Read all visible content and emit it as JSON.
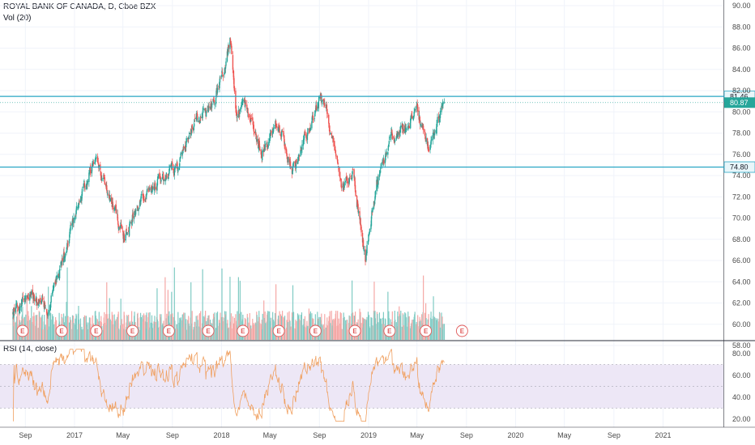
{
  "header": {
    "title": "ROYAL BANK OF CANADA, D, Cboe BZX",
    "volume_label": "Vol (20)",
    "rsi_label": "RSI (14, close)"
  },
  "colors": {
    "up": "#26a69a",
    "down": "#ef5350",
    "up_vol": "#80cbc4",
    "down_vol": "#f5a8a6",
    "level_line": "#29a6c4",
    "rsi_line": "#f0a060",
    "rsi_band": "#ede7f6",
    "tag_teal": "#25a69a",
    "earnings": "#e05a5a"
  },
  "chart_data": [
    {
      "type": "candlestick",
      "title": "ROYAL BANK OF CANADA, D, Cboe BZX",
      "ylim": [
        57,
        90.5
      ],
      "y_ticks": [
        "90.00",
        "88.00",
        "86.00",
        "84.00",
        "82.00",
        "80.00",
        "78.00",
        "76.00",
        "74.00",
        "72.00",
        "70.00",
        "68.00",
        "66.00",
        "64.00",
        "62.00",
        "60.00",
        "58.00"
      ],
      "x_ticks": [
        "Sep",
        "2017",
        "May",
        "Sep",
        "2018",
        "May",
        "Sep",
        "2019",
        "May",
        "Sep",
        "2020",
        "May",
        "Sep",
        "2021"
      ],
      "price_path": [
        [
          "2016-08-01",
          61.0
        ],
        [
          "2016-09-15",
          62.8
        ],
        [
          "2016-10-25",
          61.3
        ],
        [
          "2016-12-05",
          66.5
        ],
        [
          "2017-01-10",
          71.5
        ],
        [
          "2017-02-20",
          75.5
        ],
        [
          "2017-03-25",
          72.5
        ],
        [
          "2017-05-05",
          68.0
        ],
        [
          "2017-06-15",
          72.0
        ],
        [
          "2017-08-01",
          73.5
        ],
        [
          "2017-09-15",
          75.0
        ],
        [
          "2017-11-01",
          79.5
        ],
        [
          "2017-12-05",
          80.0
        ],
        [
          "2018-01-05",
          84.0
        ],
        [
          "2018-01-22",
          86.7
        ],
        [
          "2018-02-08",
          79.5
        ],
        [
          "2018-03-01",
          80.5
        ],
        [
          "2018-04-10",
          76.0
        ],
        [
          "2018-05-20",
          79.0
        ],
        [
          "2018-06-25",
          74.5
        ],
        [
          "2018-08-01",
          78.0
        ],
        [
          "2018-09-01",
          81.2
        ],
        [
          "2018-09-20",
          80.0
        ],
        [
          "2018-10-25",
          73.0
        ],
        [
          "2018-11-25",
          74.0
        ],
        [
          "2018-12-24",
          66.2
        ],
        [
          "2019-01-20",
          73.0
        ],
        [
          "2019-02-25",
          77.5
        ],
        [
          "2019-04-05",
          78.5
        ],
        [
          "2019-05-01",
          80.5
        ],
        [
          "2019-05-30",
          76.5
        ],
        [
          "2019-06-25",
          79.5
        ],
        [
          "2019-07-08",
          80.9
        ]
      ],
      "levels": [
        {
          "value": 81.46,
          "label": "81.46"
        },
        {
          "value": 74.8,
          "label": "74.80"
        }
      ],
      "last_price": {
        "value": 80.87,
        "label": "80.87"
      },
      "earnings_marks": [
        "E",
        "E",
        "E",
        "E",
        "E",
        "E",
        "E",
        "E",
        "E",
        "E",
        "E",
        "E",
        "E"
      ],
      "earnings_dates": [
        "2016-08-25",
        "2016-11-30",
        "2017-02-24",
        "2017-05-25",
        "2017-08-23",
        "2017-11-29",
        "2018-02-23",
        "2018-05-23",
        "2018-08-22",
        "2018-11-28",
        "2019-02-22",
        "2019-05-23",
        "2019-08-21"
      ]
    },
    {
      "type": "line",
      "title": "RSI (14, close)",
      "ylim": [
        15,
        87
      ],
      "y_ticks": [
        "80.00",
        "60.00",
        "40.00",
        "20.00"
      ],
      "band": [
        30,
        70
      ],
      "series": [
        {
          "values_note": "derived from close prices"
        }
      ]
    }
  ]
}
